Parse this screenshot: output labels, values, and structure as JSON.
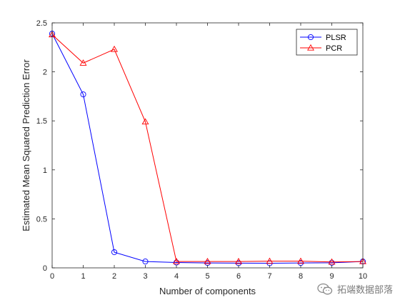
{
  "chart_data": {
    "type": "line",
    "xlabel": "Number of components",
    "ylabel": "Estimated Mean Squared Prediction Error",
    "xlim": [
      0,
      10
    ],
    "ylim": [
      0,
      2.5
    ],
    "xticks": [
      0,
      1,
      2,
      3,
      4,
      5,
      6,
      7,
      8,
      9,
      10
    ],
    "yticks": [
      0,
      0.5,
      1,
      1.5,
      2,
      2.5
    ],
    "ytick_labels": [
      "0",
      "0.5",
      "1",
      "1.5",
      "2",
      "2.5"
    ],
    "grid": false,
    "legend_position": "top-right",
    "x": [
      0,
      1,
      2,
      3,
      4,
      5,
      6,
      7,
      8,
      9,
      10
    ],
    "series": [
      {
        "name": "PLSR",
        "color": "#0000ff",
        "marker": "circle",
        "values": [
          2.39,
          1.77,
          0.16,
          0.065,
          0.055,
          0.05,
          0.048,
          0.047,
          0.05,
          0.052,
          0.065
        ]
      },
      {
        "name": "PCR",
        "color": "#ff0000",
        "marker": "triangle",
        "values": [
          2.38,
          2.09,
          2.23,
          1.49,
          0.065,
          0.065,
          0.065,
          0.068,
          0.068,
          0.06,
          0.065
        ]
      }
    ]
  },
  "watermark": {
    "text": "拓端数据部落",
    "icon": "wechat-icon"
  }
}
